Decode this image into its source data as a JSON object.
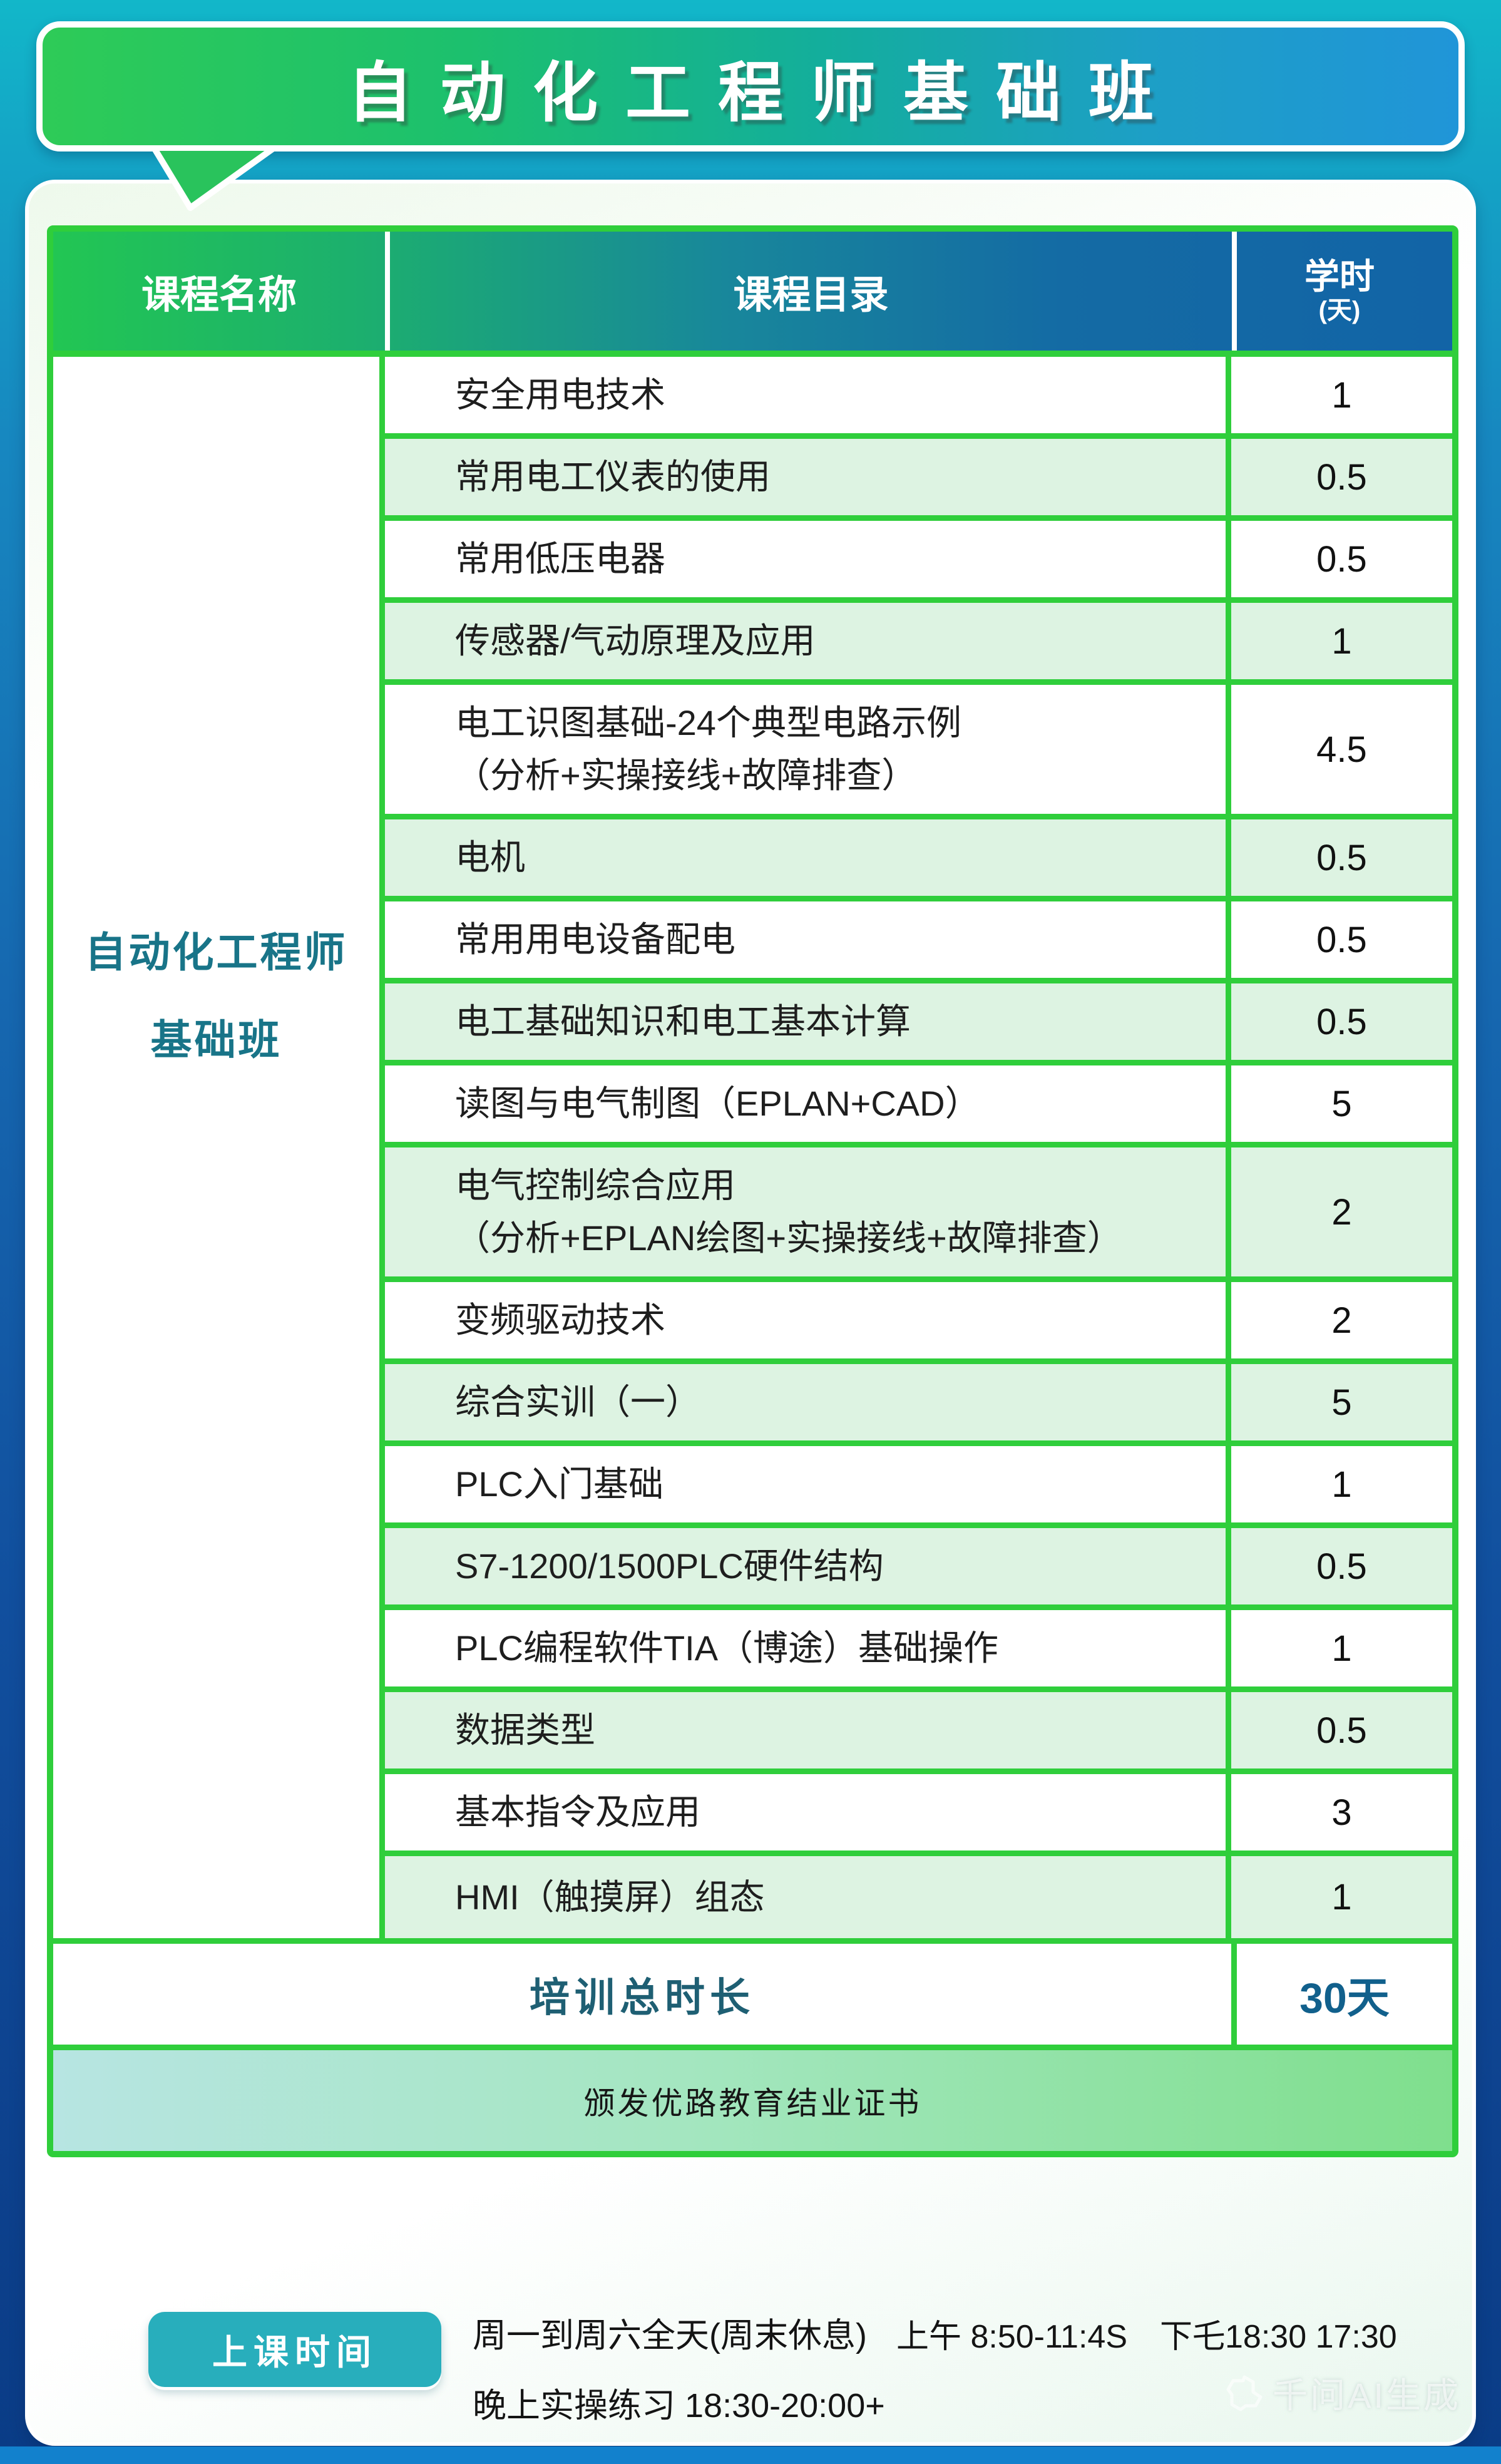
{
  "banner": {
    "title": "自动化工程师基础班"
  },
  "table": {
    "headers": {
      "course_name": "课程名称",
      "course_catalog": "课程目录",
      "hours_label": "学时",
      "hours_unit": "(天)"
    },
    "course_name": {
      "line1": "自动化工程师",
      "line2": "基础班"
    },
    "rows": [
      {
        "lines": [
          "安全用电技术"
        ],
        "hours": "1"
      },
      {
        "lines": [
          "常用电工仪表的使用"
        ],
        "hours": "0.5"
      },
      {
        "lines": [
          "常用低压电器"
        ],
        "hours": "0.5"
      },
      {
        "lines": [
          "传感器/气动原理及应用"
        ],
        "hours": "1"
      },
      {
        "lines": [
          "电工识图基础-24个典型电路示例",
          "（分析+实操接线+故障排查）"
        ],
        "hours": "4.5"
      },
      {
        "lines": [
          "电机"
        ],
        "hours": "0.5"
      },
      {
        "lines": [
          "常用用电设备配电"
        ],
        "hours": "0.5"
      },
      {
        "lines": [
          "电工基础知识和电工基本计算"
        ],
        "hours": "0.5"
      },
      {
        "lines": [
          "读图与电气制图（EPLAN+CAD）"
        ],
        "hours": "5"
      },
      {
        "lines": [
          "电气控制综合应用",
          "（分析+EPLAN绘图+实操接线+故障排查）"
        ],
        "hours": "2"
      },
      {
        "lines": [
          "变频驱动技术"
        ],
        "hours": "2"
      },
      {
        "lines": [
          "综合实训（一）"
        ],
        "hours": "5"
      },
      {
        "lines": [
          "PLC入门基础"
        ],
        "hours": "1"
      },
      {
        "lines": [
          "S7-1200/1500PLC硬件结构"
        ],
        "hours": "0.5"
      },
      {
        "lines": [
          "PLC编程软件TIA（博途）基础操作"
        ],
        "hours": "1"
      },
      {
        "lines": [
          "数据类型"
        ],
        "hours": "0.5"
      },
      {
        "lines": [
          "基本指令及应用"
        ],
        "hours": "3"
      },
      {
        "lines": [
          "HMI（触摸屏）组态"
        ],
        "hours": "1"
      }
    ],
    "total": {
      "label": "培训总时长",
      "value": "30天"
    },
    "certificate": "颁发优路教育结业证书"
  },
  "footer": {
    "badge": "上课时间",
    "schedule_line1_left": "周一到周六全天(周末休息)",
    "schedule_line1_right": "上午 8:50-11:4S　下乇18:30 17:30",
    "schedule_line2": "晚上实操练习 18:30-20:00+"
  },
  "watermark": {
    "text": "千问AI生成"
  },
  "colors": {
    "table_border": "#2fce3b",
    "row_alt_bg": "#ddf3e2",
    "header_gradient_start": "#22c653",
    "header_gradient_end": "#1264a6",
    "banner_gradient_start": "#2ecb57",
    "banner_gradient_end": "#2095d8",
    "badge_bg": "#28aebc",
    "course_name_text": "#187488",
    "total_label_text": "#1e5f73",
    "total_value_text": "#11608c"
  }
}
